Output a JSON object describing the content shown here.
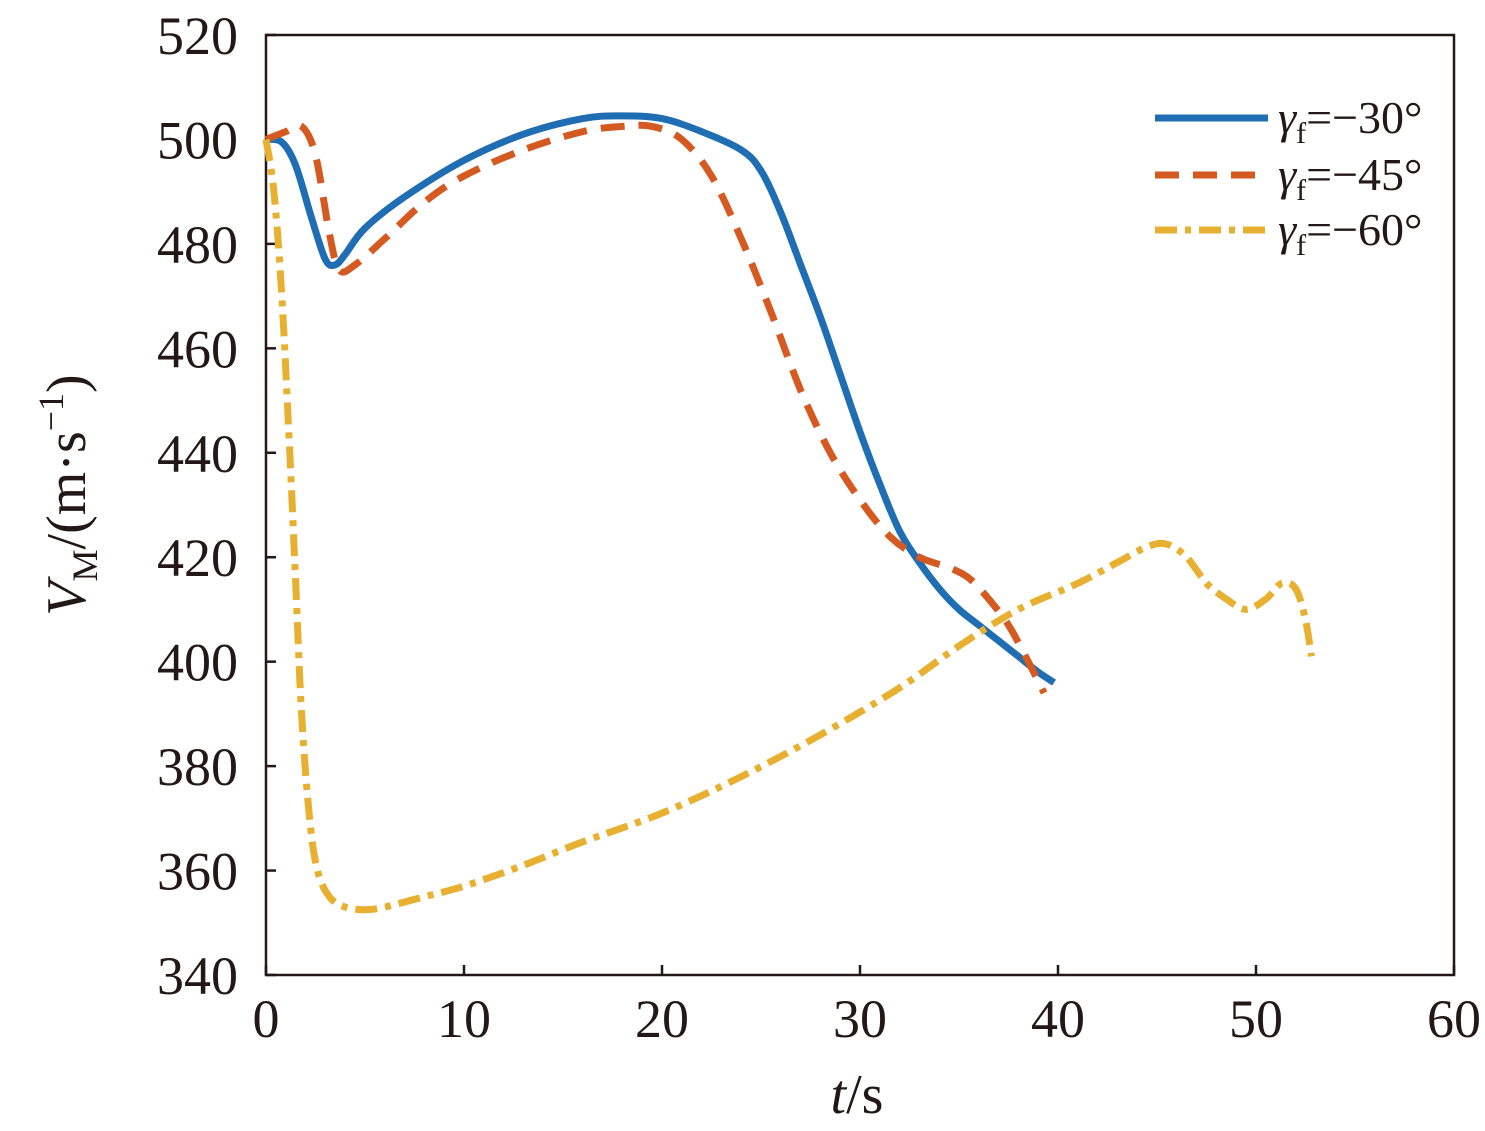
{
  "chart_data": {
    "type": "line",
    "xlabel": {
      "italic": "t",
      "rest": "/s"
    },
    "ylabel": {
      "italic": "V",
      "sub": "M",
      "rest": "/(m·s",
      "sup": "−1",
      "close": ")"
    },
    "xlim": [
      0,
      60
    ],
    "ylim": [
      340,
      520
    ],
    "xticks": [
      0,
      10,
      20,
      30,
      40,
      50,
      60
    ],
    "yticks": [
      340,
      360,
      380,
      400,
      420,
      440,
      460,
      480,
      500,
      520
    ],
    "grid": false,
    "legend_position": "top-right",
    "series": [
      {
        "name": "γf=−30°",
        "symbol": "γ",
        "sub": "f",
        "value_text": "=−30°",
        "color": "#1f6db3",
        "style": "solid",
        "points": [
          [
            0,
            500
          ],
          [
            0.8,
            499.5
          ],
          [
            1.5,
            495
          ],
          [
            2.3,
            485
          ],
          [
            3,
            477
          ],
          [
            3.5,
            476
          ],
          [
            4,
            478
          ],
          [
            5,
            483
          ],
          [
            7,
            489
          ],
          [
            10,
            496
          ],
          [
            13,
            501
          ],
          [
            16,
            504
          ],
          [
            18,
            504.5
          ],
          [
            20,
            504
          ],
          [
            22,
            501.5
          ],
          [
            24,
            498
          ],
          [
            25,
            494
          ],
          [
            26,
            486
          ],
          [
            27,
            476
          ],
          [
            28,
            466
          ],
          [
            29,
            455
          ],
          [
            30,
            444
          ],
          [
            31,
            434
          ],
          [
            32,
            425
          ],
          [
            33,
            419
          ],
          [
            34,
            414
          ],
          [
            35,
            410
          ],
          [
            36,
            407
          ],
          [
            37,
            404
          ],
          [
            38,
            401
          ],
          [
            39,
            398
          ],
          [
            39.8,
            396
          ]
        ]
      },
      {
        "name": "γf=−45°",
        "symbol": "γ",
        "sub": "f",
        "value_text": "=−45°",
        "color": "#d55a22",
        "style": "dashed",
        "points": [
          [
            0,
            500
          ],
          [
            1,
            501.5
          ],
          [
            1.8,
            502.5
          ],
          [
            2.5,
            497
          ],
          [
            3.2,
            482
          ],
          [
            3.7,
            475
          ],
          [
            4.5,
            476
          ],
          [
            6,
            481
          ],
          [
            8,
            488
          ],
          [
            10,
            493
          ],
          [
            13,
            498
          ],
          [
            16,
            501.5
          ],
          [
            18,
            502.5
          ],
          [
            19.5,
            502.5
          ],
          [
            21,
            500
          ],
          [
            22.5,
            493
          ],
          [
            24,
            481
          ],
          [
            25.5,
            467
          ],
          [
            27,
            452
          ],
          [
            28.5,
            440
          ],
          [
            30,
            431
          ],
          [
            31.5,
            424
          ],
          [
            33,
            420
          ],
          [
            34.5,
            418
          ],
          [
            35.5,
            416
          ],
          [
            36.5,
            412
          ],
          [
            37.5,
            407
          ],
          [
            38.5,
            400
          ],
          [
            39.3,
            394
          ]
        ]
      },
      {
        "name": "γf=−60°",
        "symbol": "γ",
        "sub": "f",
        "value_text": "=−60°",
        "color": "#e8b030",
        "style": "dashdot",
        "points": [
          [
            0,
            500
          ],
          [
            0.4,
            490
          ],
          [
            0.8,
            470
          ],
          [
            1.2,
            440
          ],
          [
            1.5,
            415
          ],
          [
            1.8,
            390
          ],
          [
            2.2,
            370
          ],
          [
            2.6,
            360
          ],
          [
            3.2,
            355
          ],
          [
            4,
            353
          ],
          [
            5,
            352.5
          ],
          [
            6,
            353
          ],
          [
            8,
            355
          ],
          [
            10,
            357
          ],
          [
            13,
            361
          ],
          [
            16,
            365.5
          ],
          [
            20,
            371
          ],
          [
            24,
            378
          ],
          [
            28,
            386
          ],
          [
            32,
            395
          ],
          [
            35,
            403
          ],
          [
            38,
            410
          ],
          [
            41,
            415
          ],
          [
            43,
            419
          ],
          [
            44.5,
            422
          ],
          [
            45.5,
            422.5
          ],
          [
            46.5,
            420
          ],
          [
            47.5,
            415
          ],
          [
            48.5,
            412
          ],
          [
            49.5,
            410
          ],
          [
            50.5,
            412
          ],
          [
            51.3,
            415
          ],
          [
            52,
            414
          ],
          [
            52.5,
            408
          ],
          [
            52.8,
            401
          ]
        ]
      }
    ]
  }
}
